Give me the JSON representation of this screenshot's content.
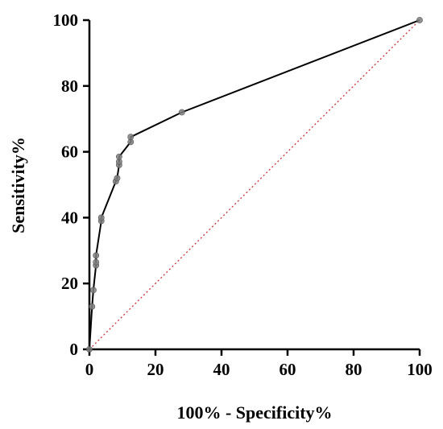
{
  "chart_data": {
    "type": "line",
    "xlabel": "100% - Specificity%",
    "ylabel": "Sensitivity%",
    "xlim": [
      0,
      100
    ],
    "ylim": [
      0,
      100
    ],
    "x_ticks": [
      0,
      20,
      40,
      60,
      80,
      100
    ],
    "y_ticks": [
      0,
      20,
      40,
      60,
      80,
      100
    ],
    "grid": false,
    "series": [
      {
        "kind": "roc-curve",
        "color": "#000000",
        "marker_color": "#7f7f7f",
        "points": [
          [
            0,
            0
          ],
          [
            0.8,
            13
          ],
          [
            1.2,
            18
          ],
          [
            2,
            25.5
          ],
          [
            2,
            26.5
          ],
          [
            2,
            28.5
          ],
          [
            3.6,
            39
          ],
          [
            3.6,
            40
          ],
          [
            8,
            51
          ],
          [
            8.4,
            52
          ],
          [
            9,
            56
          ],
          [
            9,
            57
          ],
          [
            9,
            58.5
          ],
          [
            12.5,
            63
          ],
          [
            12.5,
            64.5
          ],
          [
            28,
            72
          ],
          [
            100,
            100
          ]
        ]
      },
      {
        "kind": "reference-diagonal",
        "color": "#d03030",
        "style": "dotted",
        "points": [
          [
            0,
            0
          ],
          [
            100,
            100
          ]
        ]
      }
    ]
  }
}
